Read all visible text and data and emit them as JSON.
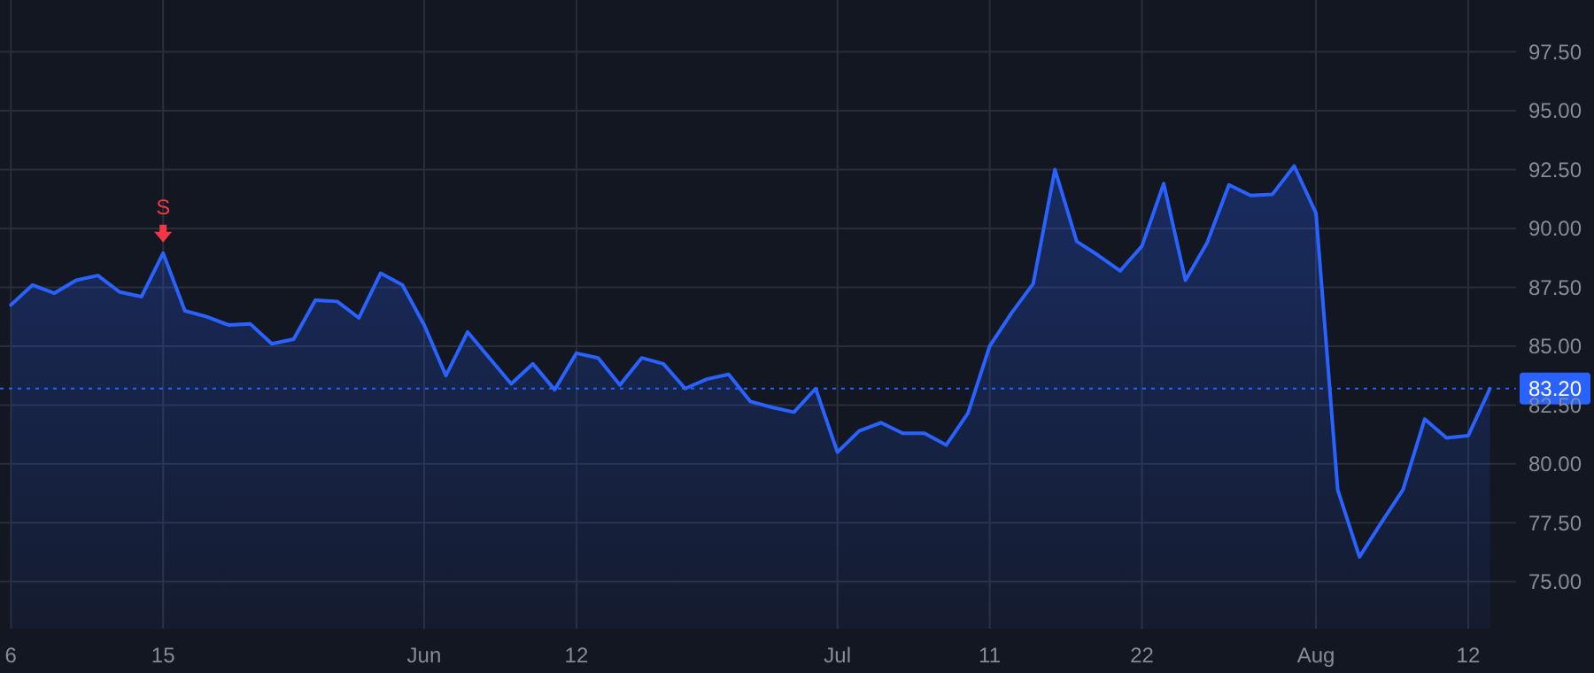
{
  "chart_data": {
    "type": "area",
    "categories": [
      "6",
      null,
      null,
      null,
      null,
      null,
      null,
      "15",
      null,
      null,
      null,
      null,
      null,
      null,
      null,
      null,
      null,
      null,
      null,
      "Jun",
      null,
      null,
      null,
      null,
      null,
      null,
      "12",
      null,
      null,
      null,
      null,
      null,
      null,
      null,
      null,
      null,
      null,
      null,
      "Jul",
      null,
      null,
      null,
      null,
      null,
      null,
      "11",
      null,
      null,
      null,
      null,
      null,
      null,
      "22",
      null,
      null,
      null,
      null,
      null,
      null,
      null,
      "Aug",
      null,
      null,
      null,
      null,
      null,
      null,
      "12",
      null
    ],
    "series": [
      {
        "color": "#2962ff",
        "values": [
          86.75,
          87.6,
          87.25,
          87.8,
          88.0,
          87.3,
          87.1,
          88.95,
          86.5,
          86.25,
          85.9,
          85.95,
          85.1,
          85.3,
          86.95,
          86.9,
          86.2,
          88.1,
          87.6,
          85.9,
          83.75,
          85.6,
          84.5,
          83.4,
          84.25,
          83.15,
          84.7,
          84.5,
          83.35,
          84.5,
          84.25,
          83.2,
          83.6,
          83.8,
          82.65,
          82.4,
          82.2,
          83.2,
          80.5,
          81.4,
          81.75,
          81.3,
          81.3,
          80.8,
          82.15,
          85.0,
          86.4,
          87.65,
          92.5,
          89.45,
          88.85,
          88.2,
          89.25,
          91.9,
          87.8,
          89.4,
          91.85,
          91.4,
          91.45,
          92.65,
          90.65,
          78.9,
          76.05,
          77.5,
          78.9,
          81.9,
          81.1,
          81.2,
          83.2
        ]
      }
    ],
    "ylim": [
      73,
      99.7
    ],
    "yticks": [
      {
        "value": 75,
        "label": "75.00"
      },
      {
        "value": 77.5,
        "label": "77.50"
      },
      {
        "value": 80,
        "label": "80.00"
      },
      {
        "value": 82.5,
        "label": "82.50"
      },
      {
        "value": 85,
        "label": "85.00"
      },
      {
        "value": 87.5,
        "label": "87.50"
      },
      {
        "value": 90,
        "label": "90.00"
      },
      {
        "value": 92.5,
        "label": "92.50"
      },
      {
        "value": 95,
        "label": "95.00"
      },
      {
        "value": 97.5,
        "label": "97.50"
      }
    ],
    "grid": true,
    "ref_lines": [
      {
        "axis": "y",
        "value": 83.2,
        "label": "83.20",
        "color": "#2962ff",
        "line_style": "dotted"
      }
    ],
    "annotations": [
      {
        "text": "S",
        "x": "15",
        "y": 88.95
      }
    ]
  }
}
